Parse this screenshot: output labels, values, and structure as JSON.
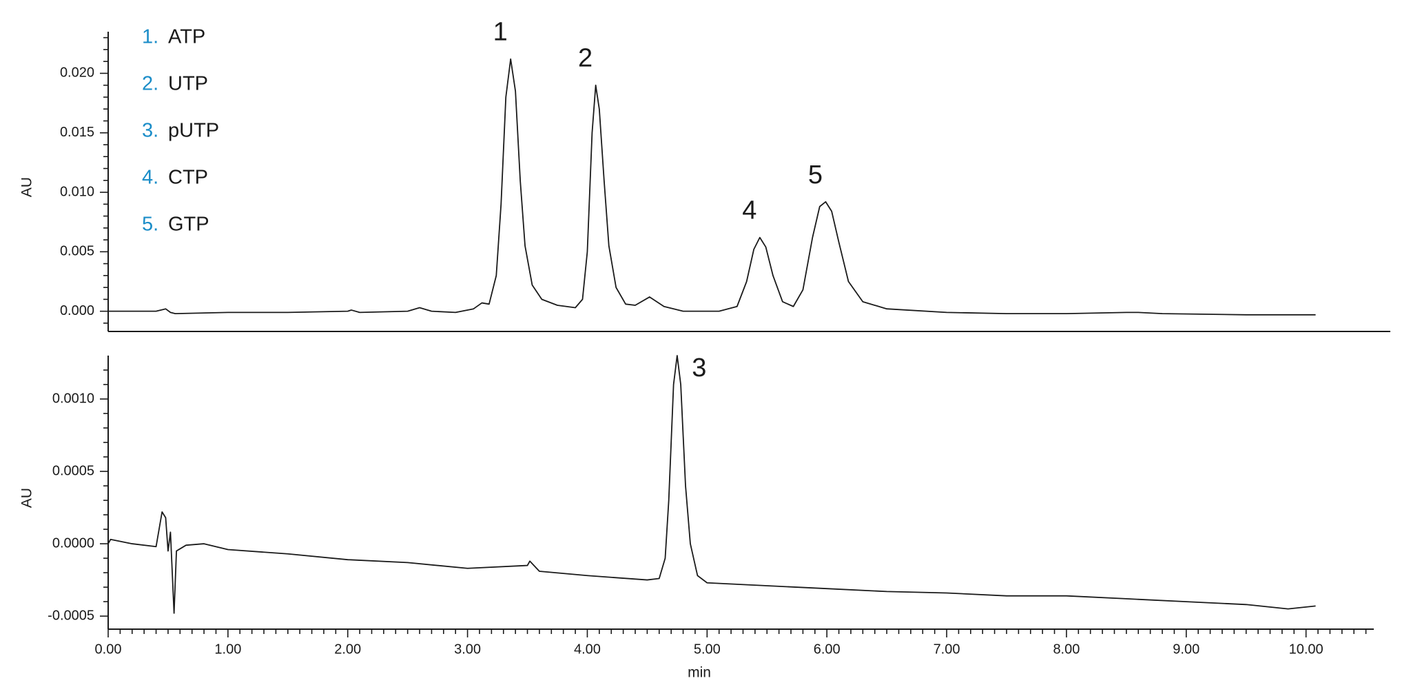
{
  "chart_data": [
    {
      "type": "line",
      "ylabel": "AU",
      "xlim": [
        0,
        10.56
      ],
      "ylim": [
        -0.0017,
        0.0235
      ],
      "yticks": [
        {
          "value": 0,
          "label": "0.000"
        },
        0.005,
        {
          "value": 0.01,
          "label": "0.010"
        },
        0.015,
        {
          "value": 0.02,
          "label": "0.020"
        }
      ],
      "legend": [
        {
          "number": "1.",
          "name": "ATP"
        },
        {
          "number": "2.",
          "name": "UTP"
        },
        {
          "number": "3.",
          "name": "pUTP"
        },
        {
          "number": "4.",
          "name": "CTP"
        },
        {
          "number": "5.",
          "name": "GTP"
        }
      ],
      "annotations": [
        "1",
        "2",
        "4",
        "5"
      ],
      "x": [
        0,
        0.4,
        0.48,
        0.52,
        0.56,
        1.0,
        1.5,
        2.0,
        2.03,
        2.1,
        2.5,
        2.6,
        2.7,
        2.9,
        3.05,
        3.12,
        3.18,
        3.24,
        3.28,
        3.32,
        3.36,
        3.4,
        3.44,
        3.48,
        3.54,
        3.62,
        3.75,
        3.9,
        3.96,
        4.0,
        4.04,
        4.07,
        4.1,
        4.14,
        4.18,
        4.24,
        4.32,
        4.4,
        4.52,
        4.64,
        4.8,
        5.1,
        5.25,
        5.33,
        5.39,
        5.44,
        5.49,
        5.55,
        5.63,
        5.72,
        5.8,
        5.88,
        5.94,
        5.99,
        6.04,
        6.1,
        6.18,
        6.3,
        6.5,
        7.0,
        7.5,
        8.0,
        8.5,
        8.6,
        8.8,
        9.5,
        10.08
      ],
      "series": [
        {
          "color": "#1a1a1a",
          "values": [
            0.0,
            0.0,
            0.0002,
            -0.0001,
            -0.0002,
            -0.0001,
            -0.0001,
            0.0,
            0.0001,
            -0.0001,
            0.0,
            0.0003,
            0.0,
            -0.0001,
            0.0002,
            0.0007,
            0.0006,
            0.003,
            0.009,
            0.018,
            0.0212,
            0.0185,
            0.011,
            0.0055,
            0.0022,
            0.001,
            0.0005,
            0.0003,
            0.001,
            0.005,
            0.015,
            0.019,
            0.017,
            0.011,
            0.0055,
            0.002,
            0.0006,
            0.0005,
            0.0012,
            0.0004,
            0.0,
            0.0,
            0.0004,
            0.0025,
            0.0052,
            0.0062,
            0.0054,
            0.003,
            0.0008,
            0.0004,
            0.0018,
            0.0062,
            0.0088,
            0.0092,
            0.0084,
            0.0058,
            0.0025,
            0.0008,
            0.0002,
            -0.0001,
            -0.0002,
            -0.0002,
            -0.0001,
            -0.0001,
            -0.0002,
            -0.0003,
            -0.0003
          ]
        }
      ]
    },
    {
      "type": "line",
      "ylabel": "AU",
      "xlabel": "min",
      "xlim": [
        0,
        10.56
      ],
      "ylim": [
        -0.00059,
        0.0013
      ],
      "xticks": [
        {
          "value": 0,
          "label": "0.00"
        },
        {
          "value": 1,
          "label": "1.00"
        },
        {
          "value": 2,
          "label": "2.00"
        },
        {
          "value": 3,
          "label": "3.00"
        },
        {
          "value": 4,
          "label": "4.00"
        },
        {
          "value": 5,
          "label": "5.00"
        },
        {
          "value": 6,
          "label": "6.00"
        },
        {
          "value": 7,
          "label": "7.00"
        },
        {
          "value": 8,
          "label": "8.00"
        },
        {
          "value": 9,
          "label": "9.00"
        },
        {
          "value": 10,
          "label": "10.00"
        }
      ],
      "yticks": [
        -0.0005,
        {
          "value": 0,
          "label": "0.0000"
        },
        0.0005,
        {
          "value": 0.001,
          "label": "0.0010"
        }
      ],
      "annotations": [
        "3"
      ],
      "x": [
        0,
        0.02,
        0.2,
        0.4,
        0.45,
        0.48,
        0.5,
        0.52,
        0.55,
        0.57,
        0.65,
        0.8,
        1.0,
        1.5,
        2.0,
        2.5,
        3.0,
        3.5,
        3.52,
        3.6,
        4.0,
        4.5,
        4.6,
        4.65,
        4.68,
        4.72,
        4.75,
        4.78,
        4.82,
        4.86,
        4.92,
        5.0,
        5.5,
        6.0,
        6.5,
        7.0,
        7.5,
        8.0,
        8.5,
        9.0,
        9.5,
        9.85,
        10.08
      ],
      "series": [
        {
          "color": "#1a1a1a",
          "values": [
            0.0,
            3e-05,
            0.0,
            -2e-05,
            0.00022,
            0.00018,
            -5e-05,
            8e-05,
            -0.00048,
            -5e-05,
            -1e-05,
            0.0,
            -4e-05,
            -7e-05,
            -0.00011,
            -0.00013,
            -0.00017,
            -0.00015,
            -0.00012,
            -0.00019,
            -0.00022,
            -0.00025,
            -0.00024,
            -0.0001,
            0.0003,
            0.0011,
            0.0013,
            0.0011,
            0.0004,
            0.0,
            -0.00022,
            -0.00027,
            -0.00029,
            -0.00031,
            -0.00033,
            -0.00034,
            -0.00036,
            -0.00036,
            -0.00038,
            -0.0004,
            -0.00042,
            -0.00045,
            -0.00043
          ]
        }
      ]
    }
  ]
}
